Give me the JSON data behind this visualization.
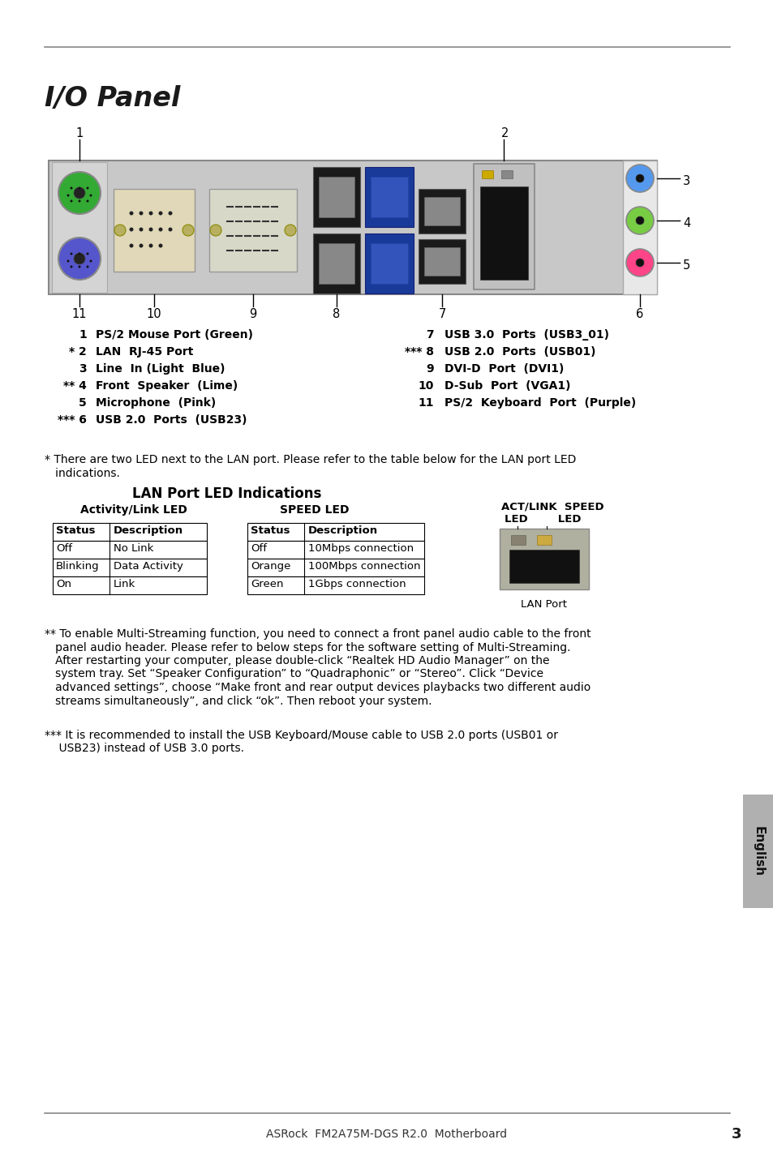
{
  "title": "I/O Panel",
  "page_number": "3",
  "footer_text": "ASRock  FM2A75M-DGS R2.0  Motherboard",
  "port_labels_left": [
    {
      "num": "1",
      "prefix": "",
      "text": "PS/2 Mouse Port (Green)"
    },
    {
      "num": "2",
      "prefix": "* ",
      "text": "LAN  RJ-45 Port"
    },
    {
      "num": "3",
      "prefix": "",
      "text": "Line  In (Light  Blue)"
    },
    {
      "num": "4",
      "prefix": "** ",
      "text": "Front  Speaker  (Lime)"
    },
    {
      "num": "5",
      "prefix": "",
      "text": "Microphone  (Pink)"
    },
    {
      "num": "6",
      "prefix": "*** ",
      "text": "USB 2.0  Ports  (USB23)"
    }
  ],
  "port_labels_right": [
    {
      "num": "7",
      "prefix": "",
      "text": "USB 3.0  Ports  (USB3_01)"
    },
    {
      "num": "8",
      "prefix": "*** ",
      "text": "USB 2.0  Ports  (USB01)"
    },
    {
      "num": "9",
      "prefix": "",
      "text": "DVI-D  Port  (DVI1)"
    },
    {
      "num": "10",
      "prefix": "",
      "text": "D-Sub  Port  (VGA1)"
    },
    {
      "num": "11",
      "prefix": "",
      "text": "PS/2  Keyboard  Port  (Purple)"
    }
  ],
  "footnote1_line1": "* There are two LED next to the LAN port. Please refer to the table below for the LAN port LED",
  "footnote1_line2": "   indications.",
  "lan_table_title": "LAN Port LED Indications",
  "activity_link_led": "Activity/Link LED",
  "speed_led": "SPEED LED",
  "lan_port_label": "LAN Port",
  "activity_rows": [
    {
      "status": "Status",
      "desc": "Description",
      "header": true
    },
    {
      "status": "Off",
      "desc": "No Link",
      "header": false
    },
    {
      "status": "Blinking",
      "desc": "Data Activity",
      "header": false
    },
    {
      "status": "On",
      "desc": "Link",
      "header": false
    }
  ],
  "speed_rows": [
    {
      "status": "Status",
      "desc": "Description",
      "header": true
    },
    {
      "status": "Off",
      "desc": "10Mbps connection",
      "header": false
    },
    {
      "status": "Orange",
      "desc": "100Mbps connection",
      "header": false
    },
    {
      "status": "Green",
      "desc": "1Gbps connection",
      "header": false
    }
  ],
  "footnote2_lines": [
    "** To enable Multi-Streaming function, you need to connect a front panel audio cable to the front",
    "   panel audio header. Please refer to below steps for the software setting of Multi-Streaming.",
    "   After restarting your computer, please double-click “Realtek HD Audio Manager” on the",
    "   system tray. Set “Speaker Configuration” to “Quadraphonic” or “Stereo”. Click “Device",
    "   advanced settings”, choose “Make front and rear output devices playbacks two different audio",
    "   streams simultaneously”, and click “ok”. Then reboot your system."
  ],
  "footnote3_lines": [
    "*** It is recommended to install the USB Keyboard/Mouse cable to USB 2.0 ports (USB01 or",
    "    USB23) instead of USB 3.0 ports."
  ],
  "english_tab": "English",
  "bg_color": "#ffffff",
  "text_color": "#1a1a1a",
  "gray_line_color": "#888888"
}
